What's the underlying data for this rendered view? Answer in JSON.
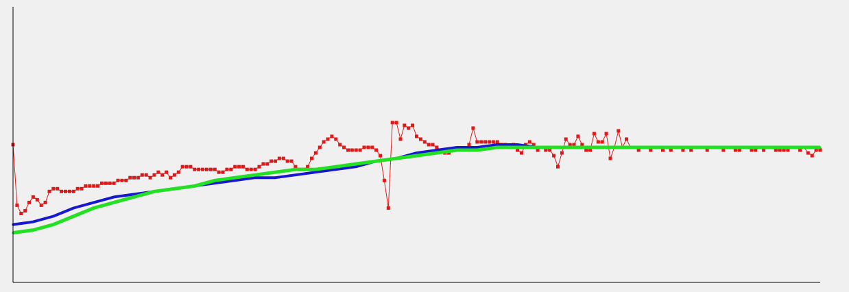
{
  "background": "#f0f0f0",
  "chart_data": {
    "type": "line",
    "title": "",
    "xlabel": "",
    "ylabel": "",
    "grid": false,
    "legend": "none",
    "xlim": [
      0,
      200
    ],
    "ylim": [
      0,
      100
    ],
    "series": [
      {
        "key": "raw",
        "color": "#e01818",
        "markers": true,
        "x": [
          0,
          1,
          2,
          3,
          4,
          5,
          6,
          7,
          8,
          9,
          10,
          11,
          12,
          13,
          14,
          15,
          16,
          17,
          18,
          19,
          20,
          21,
          22,
          23,
          24,
          25,
          26,
          27,
          28,
          29,
          30,
          31,
          32,
          33,
          34,
          35,
          36,
          37,
          38,
          39,
          40,
          41,
          42,
          43,
          44,
          45,
          46,
          47,
          48,
          49,
          50,
          51,
          52,
          53,
          54,
          55,
          56,
          57,
          58,
          59,
          60,
          61,
          62,
          63,
          64,
          65,
          66,
          67,
          68,
          69,
          70,
          71,
          72,
          73,
          74,
          75,
          76,
          77,
          78,
          79,
          80,
          81,
          82,
          83,
          84,
          85,
          86,
          87,
          88,
          89,
          90,
          91,
          92,
          93,
          94,
          95,
          96,
          97,
          98,
          99,
          100,
          101,
          102,
          103,
          104,
          105,
          106,
          107,
          108,
          109,
          110,
          111,
          112,
          113,
          114,
          115,
          116,
          117,
          118,
          119,
          120,
          121,
          122,
          123,
          124,
          125,
          126,
          127,
          128,
          129,
          130,
          131,
          132,
          133,
          134,
          135,
          136,
          137,
          138,
          139,
          140,
          141,
          142,
          143,
          144,
          145,
          146,
          147,
          148,
          149,
          150,
          151,
          152,
          153,
          154,
          155,
          156,
          157,
          158,
          159,
          160,
          161,
          162,
          163,
          164,
          165,
          166,
          167,
          168,
          169,
          170,
          171,
          172,
          173,
          174,
          175,
          176,
          177,
          178,
          179,
          180,
          181,
          182,
          183,
          184,
          185,
          186,
          187,
          188,
          189,
          190,
          191,
          192,
          193,
          194,
          195,
          196,
          197,
          198,
          199,
          200
        ],
        "y": [
          50,
          28,
          25,
          26,
          29,
          31,
          30,
          28,
          29,
          33,
          34,
          34,
          33,
          33,
          33,
          33,
          34,
          34,
          35,
          35,
          35,
          35,
          36,
          36,
          36,
          36,
          37,
          37,
          37,
          38,
          38,
          38,
          39,
          39,
          38,
          39,
          40,
          39,
          40,
          38,
          39,
          40,
          42,
          42,
          42,
          41,
          41,
          41,
          41,
          41,
          41,
          40,
          40,
          41,
          41,
          42,
          42,
          42,
          41,
          41,
          41,
          42,
          43,
          43,
          44,
          44,
          45,
          45,
          44,
          44,
          42,
          41,
          41,
          42,
          45,
          47,
          49,
          51,
          52,
          53,
          52,
          50,
          49,
          48,
          48,
          48,
          48,
          49,
          49,
          49,
          48,
          46,
          37,
          27,
          58,
          58,
          52,
          57,
          56,
          57,
          53,
          52,
          51,
          50,
          50,
          49,
          48,
          47,
          47,
          48,
          48,
          48,
          48,
          50,
          56,
          51,
          51,
          51,
          51,
          51,
          51,
          50,
          50,
          49,
          50,
          48,
          47,
          50,
          51,
          50,
          48,
          49,
          48,
          48,
          46,
          42,
          47,
          52,
          50,
          50,
          53,
          50,
          48,
          48,
          54,
          51,
          51,
          54,
          45,
          49,
          55,
          49,
          52,
          49,
          49,
          48,
          49,
          49,
          48,
          49,
          49,
          48,
          49,
          48,
          49,
          49,
          48,
          49,
          48,
          49,
          49,
          49,
          48,
          49,
          49,
          49,
          48,
          49,
          49,
          48,
          48,
          49,
          49,
          48,
          48,
          49,
          48,
          49,
          49,
          48,
          48,
          48,
          48,
          49,
          49,
          48,
          49,
          47,
          46,
          48,
          48
        ],
        "line_width": 1,
        "marker_size": 5
      },
      {
        "key": "smooth",
        "color": "#1818d0",
        "markers": true,
        "x": [
          0,
          5,
          10,
          15,
          20,
          25,
          30,
          35,
          40,
          45,
          50,
          55,
          60,
          65,
          70,
          75,
          80,
          85,
          90,
          95,
          100,
          105,
          110,
          115,
          120,
          125,
          130,
          135,
          140,
          145,
          150,
          155,
          160,
          165,
          170,
          175,
          180,
          185,
          190,
          195,
          200
        ],
        "y": [
          21,
          22,
          24,
          27,
          29,
          31,
          32,
          33,
          34,
          35,
          36,
          37,
          38,
          38,
          39,
          40,
          41,
          42,
          44,
          45,
          47,
          48,
          49,
          49,
          50,
          50,
          49,
          49,
          49,
          49,
          49,
          49,
          49,
          49,
          49,
          49,
          49,
          49,
          49,
          49,
          49
        ],
        "line_width": 4,
        "marker_size": 3
      },
      {
        "key": "trend",
        "color": "#22e022",
        "markers": true,
        "x": [
          0,
          5,
          10,
          15,
          20,
          25,
          30,
          35,
          40,
          45,
          50,
          55,
          60,
          65,
          70,
          75,
          80,
          85,
          90,
          95,
          100,
          105,
          110,
          115,
          120,
          125,
          130,
          135,
          140,
          145,
          150,
          155,
          160,
          165,
          170,
          175,
          180,
          185,
          190,
          195,
          200
        ],
        "y": [
          18,
          19,
          21,
          24,
          27,
          29,
          31,
          33,
          34,
          35,
          37,
          38,
          39,
          40,
          41,
          41,
          42,
          43,
          44,
          45,
          46,
          47,
          48,
          48,
          49,
          49,
          49,
          49,
          49,
          49,
          49,
          49,
          49,
          49,
          49,
          49,
          49,
          49,
          49,
          49,
          49
        ],
        "line_width": 5,
        "marker_size": 3
      }
    ]
  }
}
